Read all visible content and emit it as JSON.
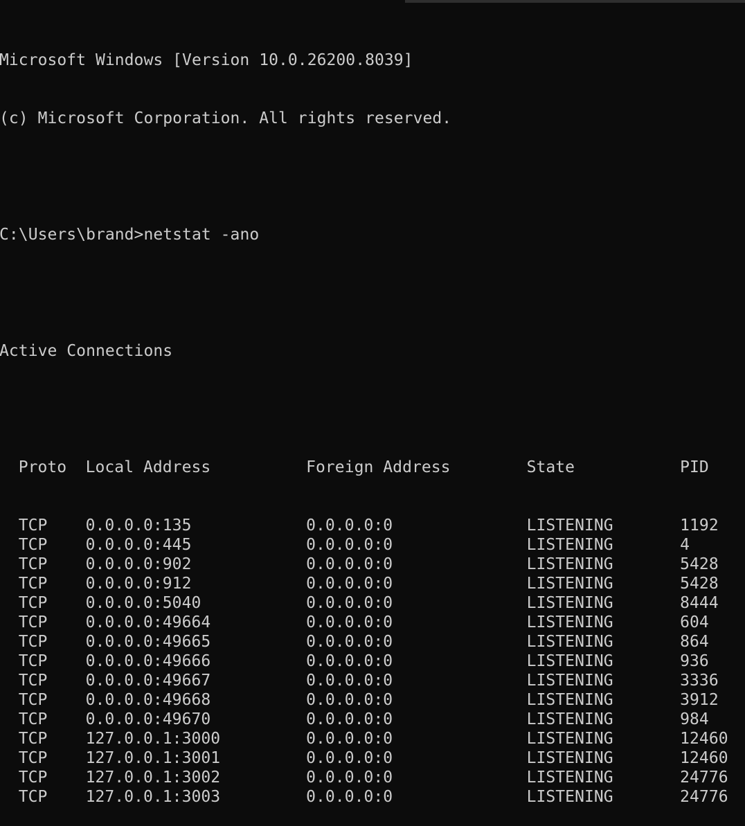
{
  "terminal": {
    "banner": [
      "Microsoft Windows [Version 10.0.26200.8039]",
      "(c) Microsoft Corporation. All rights reserved."
    ],
    "prompt": "C:\\Users\\brand>",
    "command": "netstat -ano",
    "section_title": "Active Connections",
    "columns": [
      "Proto",
      "Local Address",
      "Foreign Address",
      "State",
      "PID"
    ],
    "rows": [
      [
        "TCP",
        "0.0.0.0:135",
        "0.0.0.0:0",
        "LISTENING",
        "1192"
      ],
      [
        "TCP",
        "0.0.0.0:445",
        "0.0.0.0:0",
        "LISTENING",
        "4"
      ],
      [
        "TCP",
        "0.0.0.0:902",
        "0.0.0.0:0",
        "LISTENING",
        "5428"
      ],
      [
        "TCP",
        "0.0.0.0:912",
        "0.0.0.0:0",
        "LISTENING",
        "5428"
      ],
      [
        "TCP",
        "0.0.0.0:5040",
        "0.0.0.0:0",
        "LISTENING",
        "8444"
      ],
      [
        "TCP",
        "0.0.0.0:49664",
        "0.0.0.0:0",
        "LISTENING",
        "604"
      ],
      [
        "TCP",
        "0.0.0.0:49665",
        "0.0.0.0:0",
        "LISTENING",
        "864"
      ],
      [
        "TCP",
        "0.0.0.0:49666",
        "0.0.0.0:0",
        "LISTENING",
        "936"
      ],
      [
        "TCP",
        "0.0.0.0:49667",
        "0.0.0.0:0",
        "LISTENING",
        "3336"
      ],
      [
        "TCP",
        "0.0.0.0:49668",
        "0.0.0.0:0",
        "LISTENING",
        "3912"
      ],
      [
        "TCP",
        "0.0.0.0:49670",
        "0.0.0.0:0",
        "LISTENING",
        "984"
      ],
      [
        "TCP",
        "127.0.0.1:3000",
        "0.0.0.0:0",
        "LISTENING",
        "12460"
      ],
      [
        "TCP",
        "127.0.0.1:3001",
        "0.0.0.0:0",
        "LISTENING",
        "12460"
      ],
      [
        "TCP",
        "127.0.0.1:3002",
        "0.0.0.0:0",
        "LISTENING",
        "24776"
      ],
      [
        "TCP",
        "127.0.0.1:3003",
        "0.0.0.0:0",
        "LISTENING",
        "24776"
      ]
    ]
  },
  "colors": {
    "background": "#0c0c0c",
    "text": "#cccccc",
    "scrollbar": "#2f2f2f"
  }
}
